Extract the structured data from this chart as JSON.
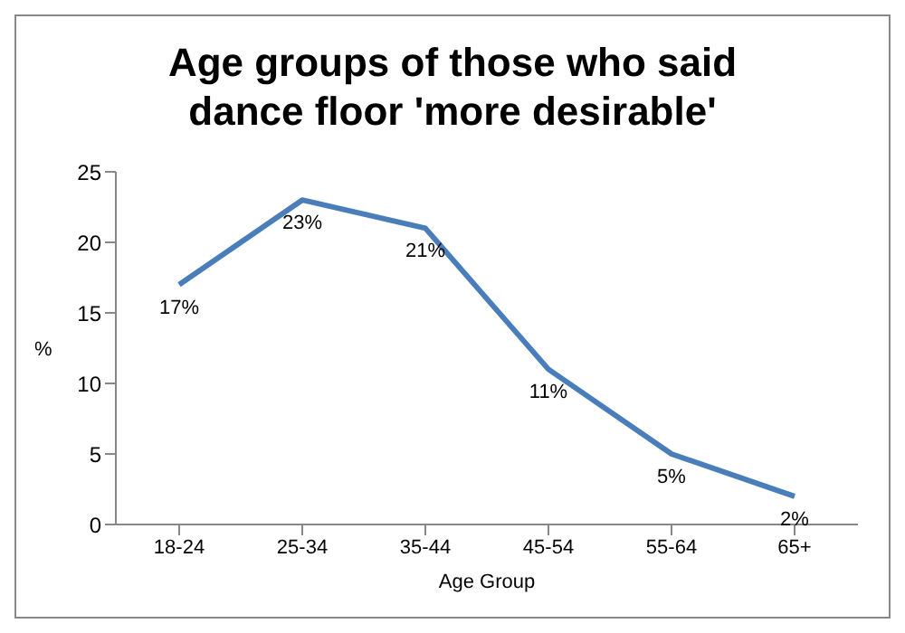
{
  "chart_data": {
    "type": "line",
    "title": "Age groups of those who said dance floor 'more desirable'",
    "xlabel": "Age Group",
    "ylabel": "%",
    "categories": [
      "18-24",
      "25-34",
      "35-44",
      "45-54",
      "55-64",
      "65+"
    ],
    "series": [
      {
        "color": "#4a7ebb",
        "values": [
          17,
          23,
          21,
          11,
          5,
          2
        ],
        "value_labels": [
          "17%",
          "23%",
          "21%",
          "11%",
          "5%",
          "2%"
        ]
      }
    ],
    "ylim": [
      0,
      25
    ],
    "yticks": [
      0,
      5,
      10,
      15,
      20,
      25
    ]
  }
}
